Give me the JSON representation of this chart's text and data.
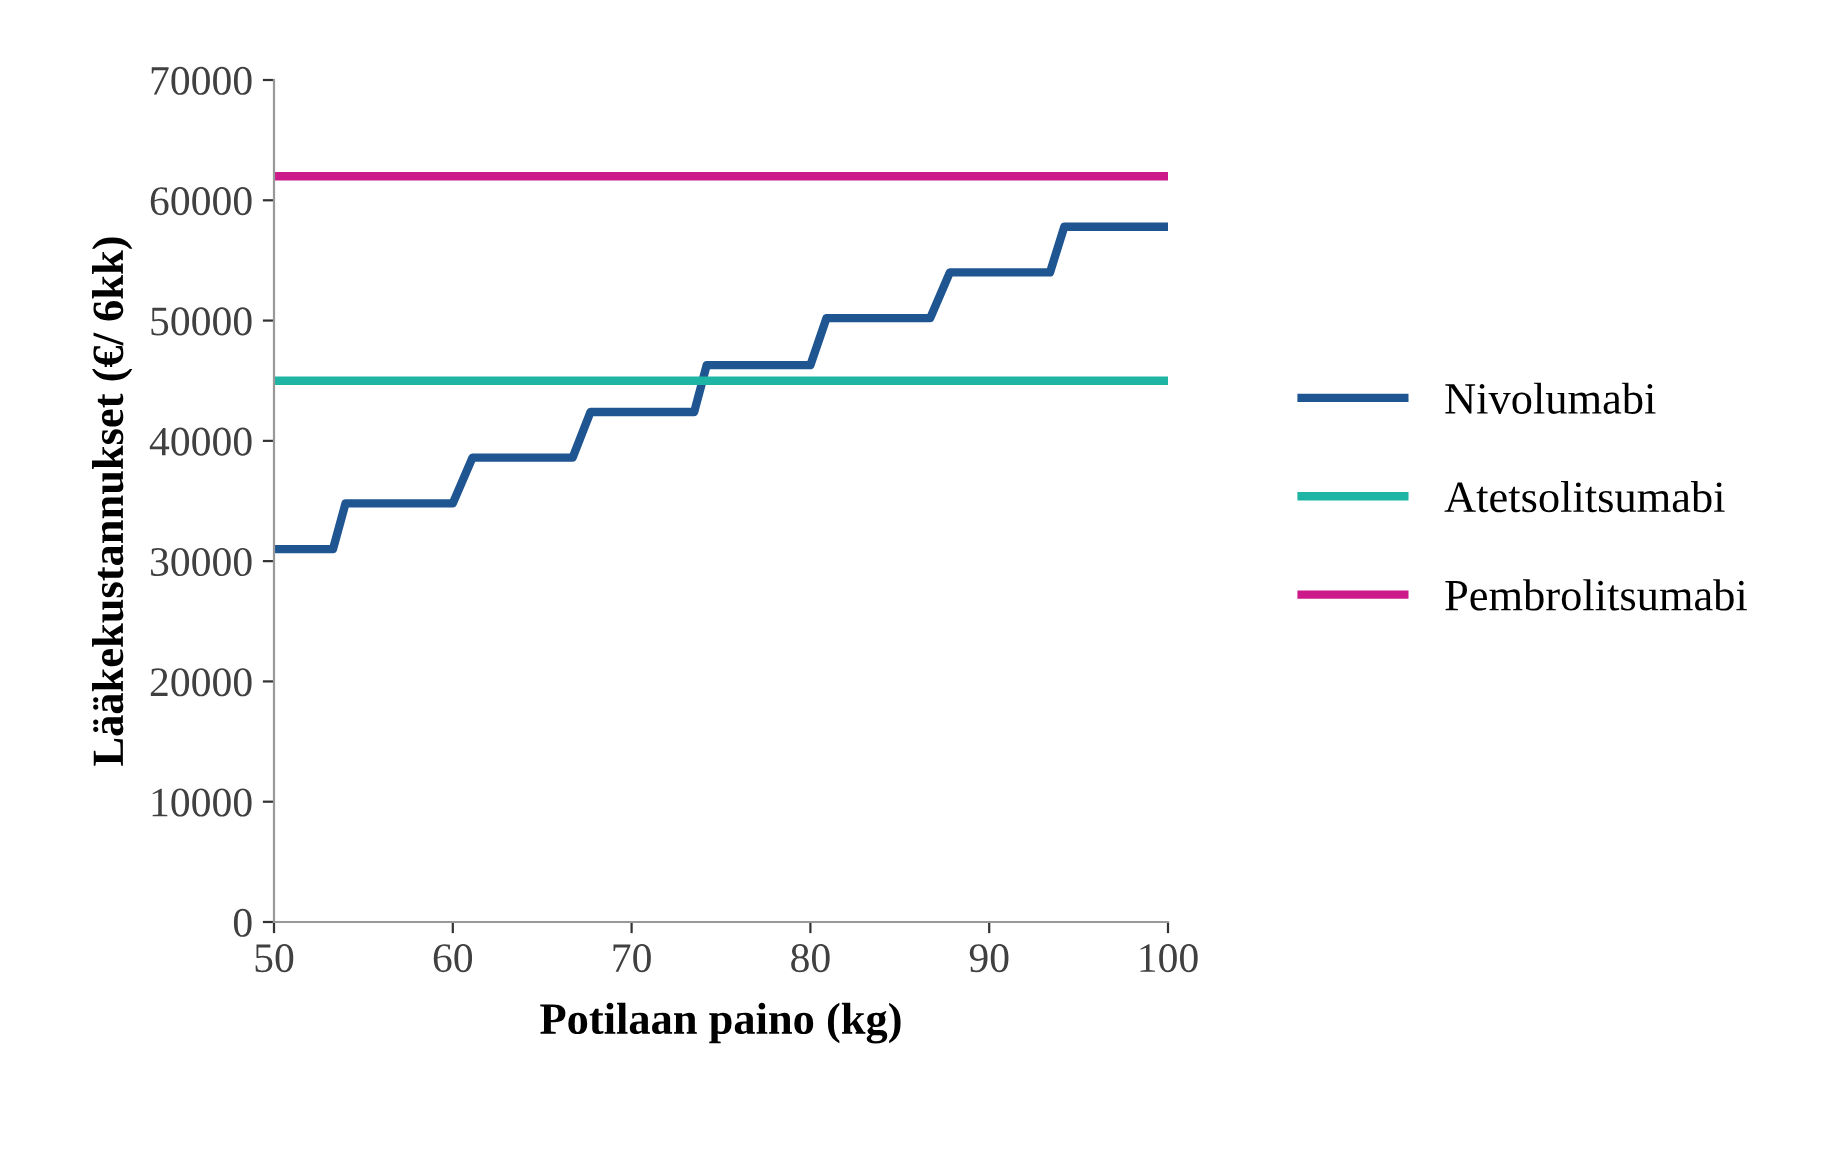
{
  "chart_data": {
    "type": "line",
    "xlabel": "Potilaan paino (kg)",
    "ylabel": "Lääkekustannukset (€/ 6kk)",
    "xlim": [
      50,
      100
    ],
    "xticks": [
      50,
      60,
      70,
      80,
      90,
      100
    ],
    "ylim": [
      0,
      70000
    ],
    "yticks": [
      0,
      10000,
      20000,
      30000,
      40000,
      50000,
      60000,
      70000
    ],
    "grid": false,
    "legend": "right",
    "marker": "none",
    "line_style": "solid",
    "series": [
      {
        "name": "Nivolumabi",
        "color": "#1f5591",
        "x": [
          50,
          53.3,
          54.0,
          60.0,
          61.1,
          66.7,
          67.7,
          73.5,
          74.2,
          80.0,
          80.9,
          86.7,
          87.8,
          93.4,
          94.2,
          100
        ],
        "values": [
          31000,
          31000,
          34800,
          34800,
          38600,
          38600,
          42400,
          42400,
          46300,
          46300,
          50200,
          50200,
          54000,
          54000,
          57800,
          57800
        ]
      },
      {
        "name": "Atetsolitsumabi",
        "color": "#1fb5a5",
        "x": [
          50,
          100
        ],
        "values": [
          45000,
          45000
        ]
      },
      {
        "name": "Pembrolitsumabi",
        "color": "#cc1a8a",
        "x": [
          50,
          100
        ],
        "values": [
          62000,
          62000
        ]
      }
    ]
  }
}
